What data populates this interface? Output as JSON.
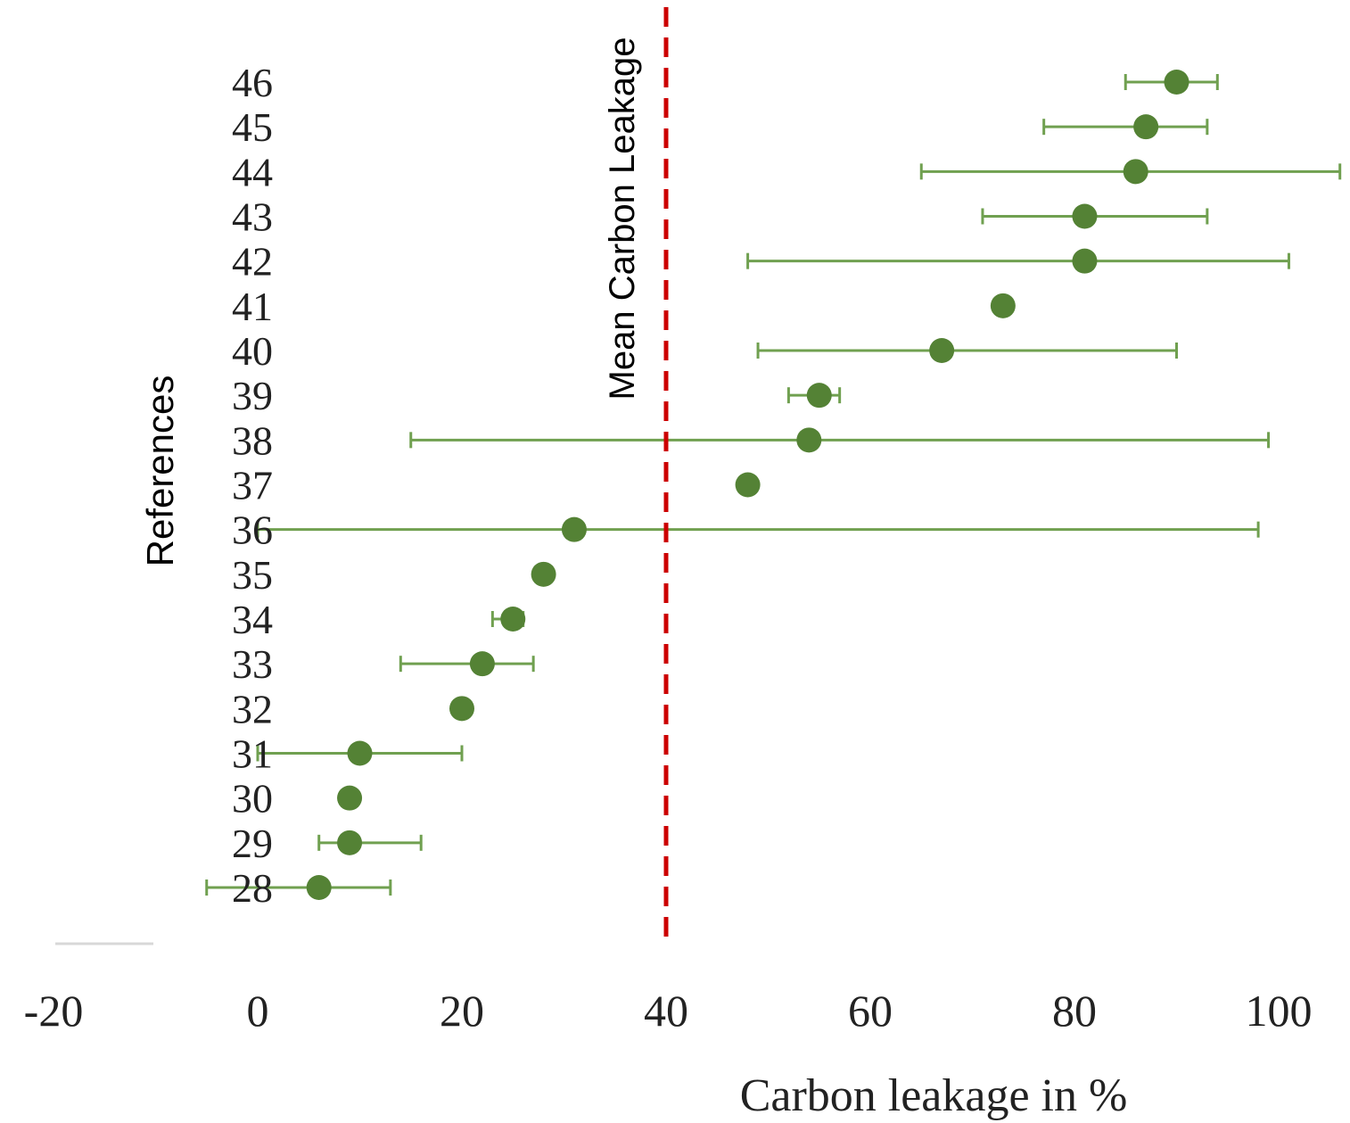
{
  "chart_data": {
    "type": "scatter",
    "orientation": "horizontal",
    "xlabel": "Carbon leakage in %",
    "ylabel": "References",
    "xlim": [
      -20,
      105
    ],
    "x_ticks": [
      -20,
      0,
      20,
      40,
      60,
      80,
      100
    ],
    "x_tick_labels": [
      "-20",
      "0",
      "20",
      "40",
      "60",
      "80",
      "100"
    ],
    "grid": false,
    "legend": "none",
    "categories": [
      "28",
      "29",
      "30",
      "31",
      "32",
      "33",
      "34",
      "35",
      "36",
      "37",
      "38",
      "39",
      "40",
      "41",
      "42",
      "43",
      "44",
      "45",
      "46"
    ],
    "points": [
      {
        "ref": "28",
        "value": 6,
        "low": -5,
        "high": 13
      },
      {
        "ref": "29",
        "value": 9,
        "low": 6,
        "high": 16
      },
      {
        "ref": "30",
        "value": 9,
        "low": null,
        "high": null
      },
      {
        "ref": "31",
        "value": 10,
        "low": 0,
        "high": 20
      },
      {
        "ref": "32",
        "value": 20,
        "low": null,
        "high": null
      },
      {
        "ref": "33",
        "value": 22,
        "low": 14,
        "high": 27
      },
      {
        "ref": "34",
        "value": 25,
        "low": 23,
        "high": 26
      },
      {
        "ref": "35",
        "value": 28,
        "low": null,
        "high": null
      },
      {
        "ref": "36",
        "value": 31,
        "low": 0,
        "high": 98
      },
      {
        "ref": "37",
        "value": 48,
        "low": null,
        "high": null
      },
      {
        "ref": "38",
        "value": 54,
        "low": 15,
        "high": 99
      },
      {
        "ref": "39",
        "value": 55,
        "low": 52,
        "high": 57
      },
      {
        "ref": "40",
        "value": 67,
        "low": 49,
        "high": 90
      },
      {
        "ref": "41",
        "value": 73,
        "low": null,
        "high": null
      },
      {
        "ref": "42",
        "value": 81,
        "low": 48,
        "high": 101
      },
      {
        "ref": "43",
        "value": 81,
        "low": 71,
        "high": 93
      },
      {
        "ref": "44",
        "value": 86,
        "low": 65,
        "high": 106
      },
      {
        "ref": "45",
        "value": 87,
        "low": 77,
        "high": 93
      },
      {
        "ref": "46",
        "value": 90,
        "low": 85,
        "high": 94
      }
    ],
    "mean_line": {
      "label": "Mean Carbon Leakage",
      "value": 40,
      "color": "#cc0000",
      "style": "dashed"
    },
    "marker_color": "#548235",
    "errorbar_color": "#70a050"
  }
}
